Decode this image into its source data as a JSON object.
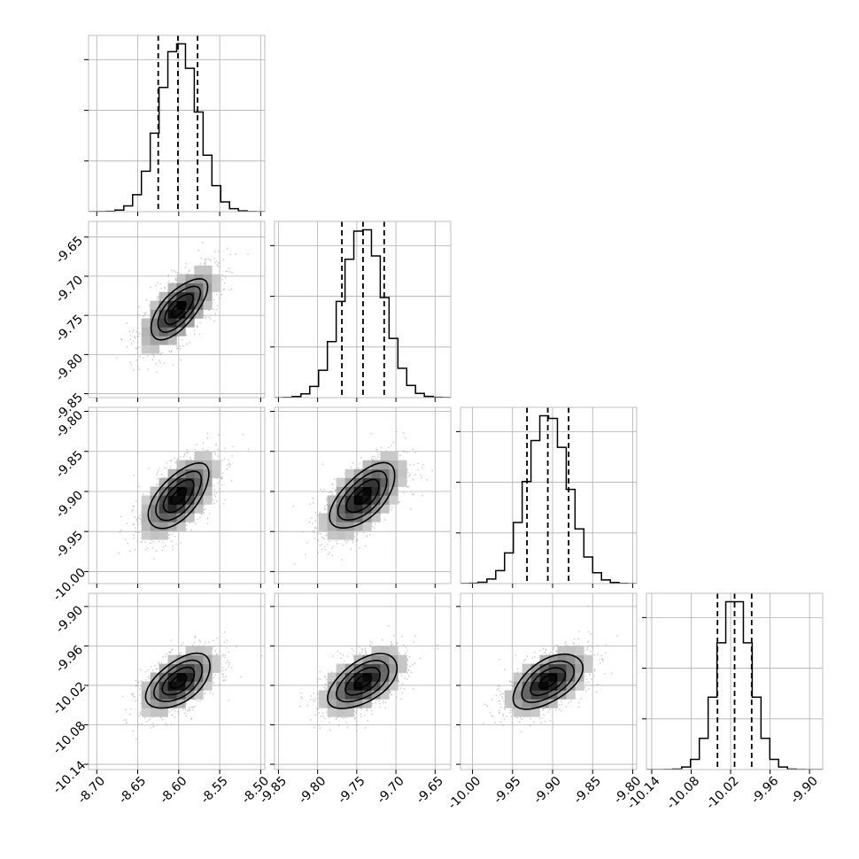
{
  "chart_data": {
    "type": "corner",
    "params": [
      {
        "range": [
          -8.71,
          -8.495
        ],
        "ticks": [
          "-8.70",
          "-8.65",
          "-8.60",
          "-8.55",
          "-8.50"
        ],
        "tick_values": [
          -8.7,
          -8.65,
          -8.6,
          -8.55,
          -8.5
        ],
        "mean": -8.6,
        "std": 0.0235,
        "quantiles": [
          -8.625,
          -8.601,
          -8.577
        ]
      },
      {
        "range": [
          -9.855,
          -9.63
        ],
        "ticks": [
          "-9.85",
          "-9.80",
          "-9.75",
          "-9.70",
          "-9.65"
        ],
        "tick_values": [
          -9.85,
          -9.8,
          -9.75,
          -9.7,
          -9.65
        ],
        "mean": -9.742,
        "std": 0.0265,
        "quantiles": [
          -9.769,
          -9.742,
          -9.715
        ]
      },
      {
        "range": [
          -10.015,
          -9.795
        ],
        "ticks": [
          "-10.00",
          "-9.95",
          "-9.90",
          "-9.85",
          "-9.80"
        ],
        "tick_values": [
          -10.0,
          -9.95,
          -9.9,
          -9.85,
          -9.8
        ],
        "mean": -9.906,
        "std": 0.026,
        "quantiles": [
          -9.932,
          -9.906,
          -9.88
        ]
      },
      {
        "range": [
          -10.148,
          -9.88
        ],
        "ticks": [
          "-10.14",
          "-10.08",
          "-10.02",
          "-9.96",
          "-9.90"
        ],
        "tick_values": [
          -10.14,
          -10.08,
          -10.02,
          -9.96,
          -9.9
        ],
        "mean": -10.014,
        "std": 0.025,
        "quantiles": [
          -10.04,
          -10.014,
          -9.988
        ]
      }
    ],
    "correlations": {
      "1-0": 0.68,
      "2-0": 0.62,
      "3-0": 0.55,
      "2-1": 0.62,
      "3-1": 0.55,
      "3-2": 0.55
    },
    "hist_bins": 20,
    "grid": true,
    "colors": {
      "line": "#000000",
      "grid": "#b0b0b0",
      "points": "#9a9a9a",
      "frame": "#bfbfbf"
    }
  }
}
